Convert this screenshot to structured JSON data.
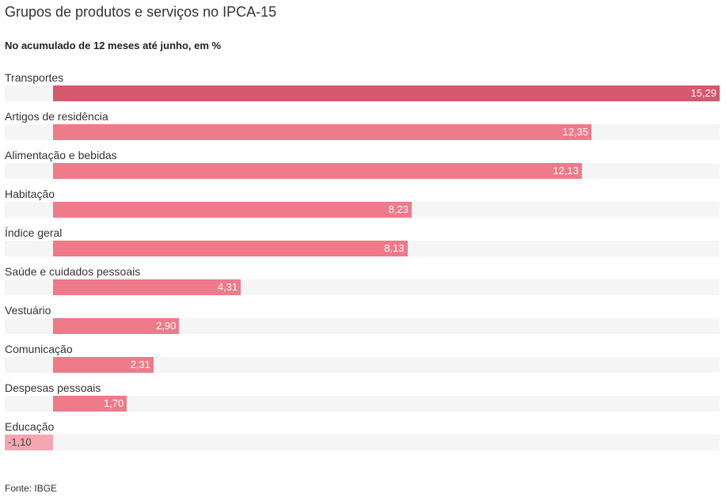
{
  "chart_data": {
    "type": "bar",
    "orientation": "horizontal",
    "title": "Grupos de produtos e serviços no IPCA-15",
    "subtitle": "No acumulado de 12 meses até junho, em %",
    "categories": [
      "Transportes",
      "Artigos de residência",
      "Alimentação e bebidas",
      "Habitação",
      "Índice geral",
      "Saúde e cuidados pessoais",
      "Vestuário",
      "Comunicação",
      "Despesas pessoais",
      "Educação"
    ],
    "values": [
      15.29,
      12.35,
      12.13,
      8.23,
      8.13,
      4.31,
      2.9,
      2.31,
      1.7,
      -1.1
    ],
    "value_labels": [
      "15,29",
      "12,35",
      "12,13",
      "8,23",
      "8,13",
      "4,31",
      "2,90",
      "2,31",
      "1,70",
      "-1,10"
    ],
    "xlim": [
      -1.1,
      15.29
    ],
    "grid": false,
    "source": "Fonte: IBGE",
    "colors": {
      "highlight": "#d4586e",
      "positive": "#ee7a8a",
      "negative": "#f4a7b0",
      "track": "#f5f5f5"
    }
  }
}
